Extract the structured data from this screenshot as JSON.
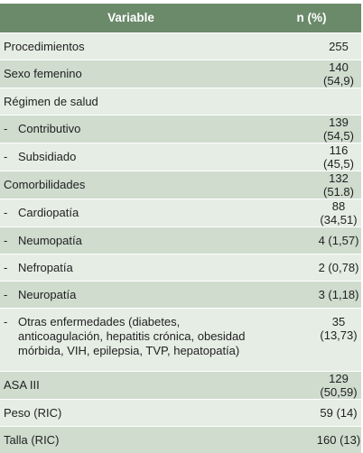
{
  "table": {
    "headers": {
      "variable": "Variable",
      "value": "n (%)"
    },
    "rows": [
      {
        "label": "Procedimientos",
        "value": "255",
        "indent": false
      },
      {
        "label": "Sexo femenino",
        "value": "140 (54,9)",
        "indent": false
      },
      {
        "label": "Régimen de salud",
        "value": "",
        "indent": false
      },
      {
        "label": "Contributivo",
        "value": "139 (54,5)",
        "indent": true,
        "dash": "-"
      },
      {
        "label": "Subsidiado",
        "value": "116 (45,5)",
        "indent": true,
        "dash": "-"
      },
      {
        "label": "Comorbilidades",
        "value": "132 (51.8)",
        "indent": false
      },
      {
        "label": "Cardiopatía",
        "value": "88 (34,51)",
        "indent": true,
        "dash": "-"
      },
      {
        "label": "Neumopatía",
        "value": "4 (1,57)",
        "indent": true,
        "dash": "-"
      },
      {
        "label": "Nefropatía",
        "value": "2 (0,78)",
        "indent": true,
        "dash": "-"
      },
      {
        "label": "Neuropatía",
        "value": "3 (1,18)",
        "indent": true,
        "dash": "-"
      },
      {
        "label": "Otras enfermedades (diabetes, anticoagulación, hepatitis crónica, obesidad mórbida, VIH, epilepsia, TVP, hepatopatía)",
        "value": "35 (13,73)",
        "indent": true,
        "dash": "-"
      },
      {
        "label": "ASA III",
        "value": "129 (50,59)",
        "indent": false
      },
      {
        "label": "Peso (RIC)",
        "value": "59 (14)",
        "indent": false
      },
      {
        "label": "Talla (RIC)",
        "value": "160 (13)",
        "indent": false
      }
    ]
  },
  "colors": {
    "header": "#6b8a6a",
    "row_light": "#e6ede5",
    "row_dark": "#cfdcce"
  }
}
